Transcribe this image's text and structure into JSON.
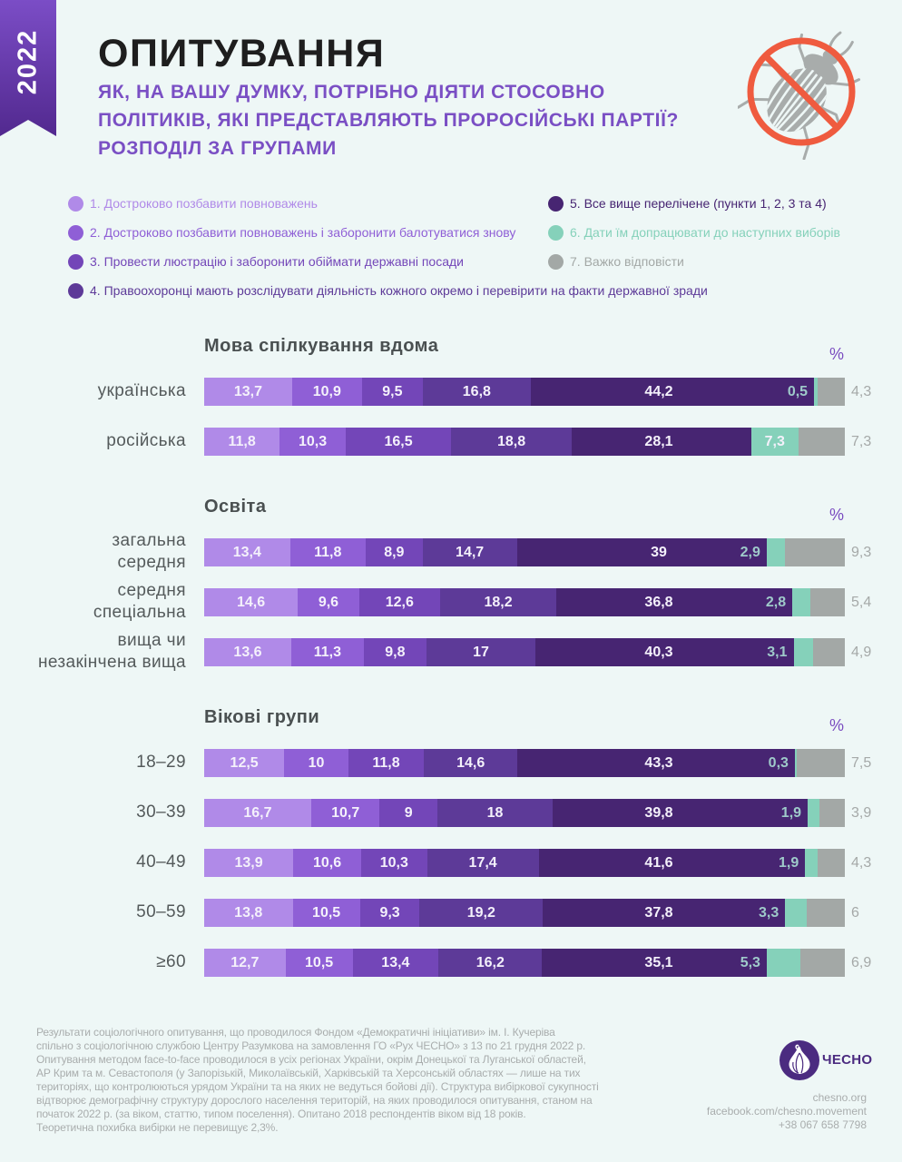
{
  "ribbon": {
    "year": "2022"
  },
  "header": {
    "title": "ОПИТУВАННЯ",
    "subtitle_lines": [
      "ЯК, НА ВАШУ ДУМКУ, ПОТРІБНО ДІЯТИ СТОСОВНО",
      "ПОЛІТИКІВ, ЯКІ ПРЕДСТАВЛЯЮТЬ ПРОРОСІЙСЬКІ ПАРТІЇ?",
      "РОЗПОДІЛ ЗА ГРУПАМИ"
    ],
    "icon": "no-beetle-icon",
    "accent_color": "#7a4fc4",
    "icon_color": "#ef5b3f"
  },
  "chart_data": {
    "type": "bar",
    "orientation": "horizontal",
    "stacked": true,
    "unit": "%",
    "legend_position": "top",
    "series": [
      {
        "name": "1. Достроково позбавити повноважень",
        "color": "#b08ae8"
      },
      {
        "name": "2. Достроково позбавити повноважень і заборонити балотуватися знову",
        "color": "#8f5fd6"
      },
      {
        "name": "3. Провести люстрацію і заборонити обіймати державні посади",
        "color": "#7346b8"
      },
      {
        "name": "4. Правоохоронці мають розслідувати діяльність кожного окремо і перевірити на факти державної зради",
        "color": "#5d3a98"
      },
      {
        "name": "5. Все вище перелічене (пункти 1, 2, 3 та 4)",
        "color": "#472572"
      },
      {
        "name": "6. Дати їм допрацювати до наступних виборів",
        "color": "#85d1ba"
      },
      {
        "name": "7. Важко відповісти",
        "color": "#a3a8a6"
      }
    ],
    "groups": [
      {
        "title": "Мова спілкування вдома",
        "unit_label": "%",
        "rows": [
          {
            "label": [
              "українська"
            ],
            "values": [
              13.7,
              10.9,
              9.5,
              16.8,
              44.2,
              0.5,
              4.3
            ]
          },
          {
            "label": [
              "російська"
            ],
            "values": [
              11.8,
              10.3,
              16.5,
              18.8,
              28.1,
              7.3,
              7.3
            ]
          }
        ]
      },
      {
        "title": "Освіта",
        "unit_label": "%",
        "rows": [
          {
            "label": [
              "загальна",
              "середня"
            ],
            "values": [
              13.4,
              11.8,
              8.9,
              14.7,
              39,
              2.9,
              9.3
            ]
          },
          {
            "label": [
              "середня",
              "спеціальна"
            ],
            "values": [
              14.6,
              9.6,
              12.6,
              18.2,
              36.8,
              2.8,
              5.4
            ]
          },
          {
            "label": [
              "вища чи",
              "незакінчена вища"
            ],
            "values": [
              13.6,
              11.3,
              9.8,
              17,
              40.3,
              3.1,
              4.9
            ]
          }
        ]
      },
      {
        "title": "Вікові групи",
        "unit_label": "%",
        "rows": [
          {
            "label": [
              "18–29"
            ],
            "values": [
              12.5,
              10,
              11.8,
              14.6,
              43.3,
              0.3,
              7.5
            ]
          },
          {
            "label": [
              "30–39"
            ],
            "values": [
              16.7,
              10.7,
              9,
              18,
              39.8,
              1.9,
              3.9
            ]
          },
          {
            "label": [
              "40–49"
            ],
            "values": [
              13.9,
              10.6,
              10.3,
              17.4,
              41.6,
              1.9,
              4.3
            ]
          },
          {
            "label": [
              "50–59"
            ],
            "values": [
              13.8,
              10.5,
              9.3,
              19.2,
              37.8,
              3.3,
              6
            ]
          },
          {
            "label": [
              "≥60"
            ],
            "values": [
              12.7,
              10.5,
              13.4,
              16.2,
              35.1,
              5.3,
              6.9
            ]
          }
        ]
      }
    ]
  },
  "footer": {
    "note_lines": [
      "Результати соціологічного опитування, що проводилося Фондом «Демократичні ініціативи» ім. І. Кучеріва",
      "спільно з соціологічною службою Центру Разумкова на замовлення ГО «Рух ЧЕСНО» з 13 по 21 грудня 2022 р.",
      "Опитування методом face-to-face проводилося в усіх регіонах України, окрім Донецької та Луганської областей,",
      "АР Крим та м. Севастополя (у Запорізькій, Миколаївській, Харківській та Херсонській областях — лише на тих",
      "територіях, що контролюються урядом України та на яких не ведуться бойові дії). Структура вибіркової сукупності",
      "відтворює демографічну структуру дорослого населення територій, на яких проводилося опитування, станом на",
      "початок 2022 р. (за віком, статтю, типом поселення). Опитано 2018 респондентів віком від 18 років.",
      "Теоретична похибка вибірки не перевищує 2,3%."
    ],
    "logo_text": "ЧЕСНО",
    "logo_icon": "garlic-logo-icon",
    "contacts": [
      "chesno.org",
      "facebook.com/chesno.movement",
      "+38 067 658 7798"
    ]
  }
}
